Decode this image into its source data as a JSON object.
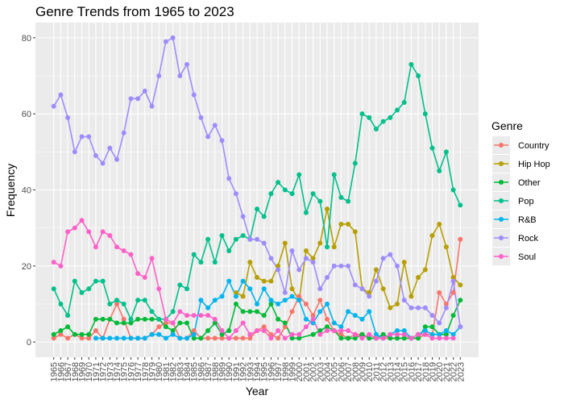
{
  "chart_data": {
    "type": "line",
    "title": "Genre Trends from 1965 to 2023",
    "xlabel": "Year",
    "ylabel": "Frequency",
    "xlim": [
      1965,
      2023
    ],
    "ylim": [
      0,
      84
    ],
    "y_ticks": [
      0,
      20,
      40,
      60,
      80
    ],
    "grid": true,
    "legend": {
      "title": "Genre",
      "placement": "right"
    },
    "x": [
      1965,
      1966,
      1967,
      1968,
      1969,
      1970,
      1971,
      1972,
      1973,
      1974,
      1975,
      1976,
      1977,
      1978,
      1979,
      1980,
      1981,
      1982,
      1983,
      1984,
      1985,
      1986,
      1987,
      1988,
      1989,
      1990,
      1991,
      1992,
      1993,
      1994,
      1995,
      1996,
      1997,
      1998,
      1999,
      2000,
      2001,
      2002,
      2003,
      2004,
      2005,
      2006,
      2007,
      2008,
      2009,
      2010,
      2011,
      2012,
      2013,
      2014,
      2015,
      2016,
      2017,
      2018,
      2019,
      2020,
      2021,
      2022,
      2023
    ],
    "series": [
      {
        "name": "Country",
        "color": "#F8766D",
        "values": [
          1,
          2,
          1,
          2,
          1,
          1,
          3,
          1,
          6,
          10,
          6,
          1,
          1,
          1,
          2,
          4,
          5,
          5,
          1,
          1,
          3,
          1,
          1,
          1,
          1,
          1,
          1,
          1,
          1,
          3,
          4,
          2,
          1,
          4,
          8,
          12,
          10,
          7,
          11,
          6,
          3,
          2,
          1,
          2,
          2,
          1,
          1,
          1,
          1,
          1,
          1,
          1,
          1,
          2,
          2,
          13,
          10,
          13,
          27
        ]
      },
      {
        "name": "Hip Hop",
        "color": "#B79F00",
        "values": [
          null,
          null,
          null,
          null,
          null,
          null,
          null,
          null,
          null,
          null,
          null,
          null,
          null,
          null,
          null,
          null,
          null,
          null,
          null,
          null,
          null,
          null,
          null,
          null,
          null,
          null,
          13,
          12,
          21,
          17,
          16,
          16,
          20,
          26,
          14,
          11,
          24,
          22,
          26,
          35,
          25,
          31,
          31,
          29,
          14,
          13,
          19,
          14,
          9,
          10,
          21,
          12,
          17,
          19,
          28,
          31,
          25,
          17,
          15
        ]
      },
      {
        "name": "Other",
        "color": "#00BA38",
        "values": [
          2,
          3,
          4,
          2,
          2,
          2,
          6,
          6,
          6,
          5,
          5,
          5,
          6,
          6,
          6,
          6,
          4,
          3,
          5,
          5,
          1,
          1,
          3,
          5,
          2,
          3,
          10,
          8,
          8,
          8,
          7,
          10,
          6,
          5,
          1,
          1,
          null,
          2,
          3,
          4,
          3,
          1,
          1,
          1,
          2,
          1,
          1,
          2,
          1,
          1,
          1,
          1,
          1,
          4,
          4,
          2,
          2,
          7,
          11
        ]
      },
      {
        "name": "Pop",
        "color": "#00C08B",
        "values": [
          14,
          10,
          7,
          16,
          13,
          14,
          16,
          16,
          10,
          11,
          10,
          6,
          11,
          11,
          8,
          6,
          6,
          8,
          15,
          14,
          23,
          21,
          27,
          21,
          28,
          24,
          27,
          28,
          27,
          35,
          33,
          39,
          42,
          40,
          39,
          44,
          34,
          39,
          37,
          25,
          44,
          38,
          37,
          47,
          60,
          59,
          56,
          58,
          59,
          61,
          63,
          73,
          70,
          60,
          51,
          45,
          50,
          40,
          36
        ]
      },
      {
        "name": "R&B",
        "color": "#00B4EF",
        "values": [
          null,
          null,
          null,
          null,
          null,
          null,
          1,
          1,
          1,
          1,
          1,
          1,
          1,
          1,
          2,
          2,
          1,
          2,
          1,
          1,
          2,
          11,
          9,
          11,
          12,
          16,
          12,
          16,
          14,
          10,
          14,
          11,
          10,
          11,
          12,
          11,
          6,
          5,
          8,
          10,
          5,
          4,
          8,
          7,
          6,
          8,
          2,
          1,
          2,
          3,
          3,
          1,
          2,
          3,
          2,
          2,
          3,
          2,
          4
        ]
      },
      {
        "name": "Rock",
        "color": "#9F8CFF",
        "values": [
          62,
          65,
          59,
          50,
          54,
          54,
          49,
          47,
          51,
          48,
          55,
          64,
          64,
          66,
          62,
          70,
          79,
          80,
          70,
          73,
          65,
          59,
          54,
          57,
          53,
          43,
          39,
          33,
          27,
          27,
          26,
          22,
          19,
          13,
          24,
          19,
          22,
          21,
          14,
          17,
          20,
          20,
          20,
          15,
          14,
          12,
          16,
          22,
          23,
          20,
          11,
          9,
          9,
          9,
          7,
          5,
          9,
          16,
          4
        ]
      },
      {
        "name": "Soul",
        "color": "#FF61C9",
        "values": [
          21,
          20,
          29,
          30,
          32,
          29,
          25,
          29,
          28,
          25,
          24,
          23,
          18,
          17,
          22,
          14,
          6,
          5,
          8,
          7,
          7,
          7,
          7,
          6,
          3,
          1,
          3,
          5,
          2,
          3,
          3,
          1,
          3,
          1,
          2,
          2,
          4,
          6,
          2,
          3,
          3,
          3,
          3,
          2,
          1,
          2,
          1,
          1,
          2,
          2,
          2,
          1,
          2,
          2,
          1,
          1,
          1,
          1,
          null
        ]
      }
    ]
  }
}
